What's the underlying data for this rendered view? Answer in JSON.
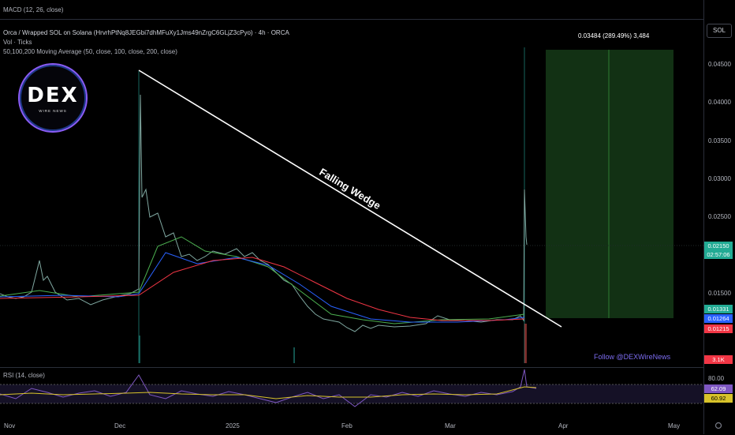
{
  "header": {
    "macd_label": "MACD (12, 26, close)",
    "title": "Orca / Wrapped SOL on Solana (HrvrhPtNq8JEGbi7dhMFuXy1Jms49nZrgC6GLjZ3cPyo) · 4h · ORCA",
    "vol_label": "Vol · Ticks",
    "ma_label": "50,100,200 Moving Average (50, close, 100, close, 200, close)"
  },
  "currency_button": "SOL",
  "price_ticks": [
    "0.04500",
    "0.04000",
    "0.03500",
    "0.03000",
    "0.02500",
    "0.01500"
  ],
  "price_tags": {
    "last": "0.02150",
    "countdown": "02:57:06",
    "ma50": "0.01331",
    "ma100": "0.01264",
    "ma200": "0.01215",
    "volume": "3.1K"
  },
  "rsi": {
    "label": "RSI (14, close)",
    "ticks": [
      "80.00"
    ],
    "tag_rsi": "62.09",
    "tag_ma": "60.92"
  },
  "x_ticks": [
    "Nov",
    "Dec",
    "2025",
    "Feb",
    "Mar",
    "Apr",
    "May"
  ],
  "logo": {
    "text": "DEX",
    "sub": "WIRE NEWS"
  },
  "annotation": "Falling Wedge",
  "range_label": "0.03484 (289.49%) 3,484",
  "watermark": "Follow @DEXWireNews",
  "colors": {
    "last": "#22ab94",
    "ma50": "#22ab94",
    "ma100": "#2962ff",
    "ma200": "#f23645",
    "rsi_tag": "#7e57c2",
    "rsi_ma_tag": "#d8c32a",
    "volume_tag": "#f23645",
    "target_zone": "#1b5e20"
  }
}
